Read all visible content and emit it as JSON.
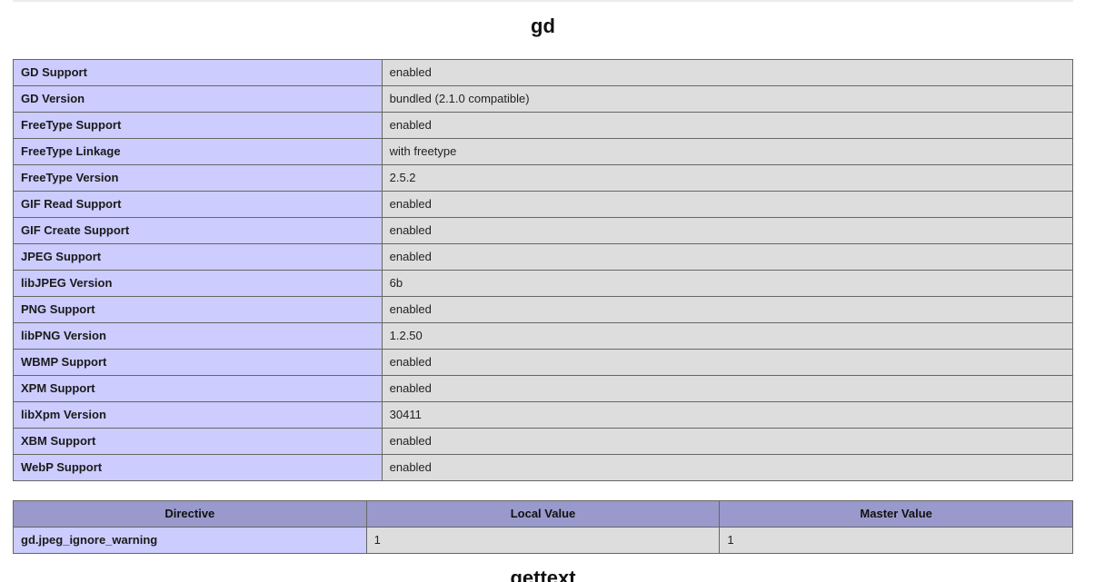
{
  "page_title": "gd",
  "next_section_title": "gettext",
  "colors": {
    "label_cell_bg": "#ccccff",
    "value_cell_bg": "#dddddd",
    "header_cell_bg": "#9999cc",
    "table_border": "#666666",
    "page_bg": "#ffffff"
  },
  "gd_table": {
    "rows": [
      {
        "label": "GD Support",
        "value": "enabled"
      },
      {
        "label": "GD Version",
        "value": "bundled (2.1.0 compatible)"
      },
      {
        "label": "FreeType Support",
        "value": "enabled"
      },
      {
        "label": "FreeType Linkage",
        "value": "with freetype"
      },
      {
        "label": "FreeType Version",
        "value": "2.5.2"
      },
      {
        "label": "GIF Read Support",
        "value": "enabled"
      },
      {
        "label": "GIF Create Support",
        "value": "enabled"
      },
      {
        "label": "JPEG Support",
        "value": "enabled"
      },
      {
        "label": "libJPEG Version",
        "value": "6b"
      },
      {
        "label": "PNG Support",
        "value": "enabled"
      },
      {
        "label": "libPNG Version",
        "value": "1.2.50"
      },
      {
        "label": "WBMP Support",
        "value": "enabled"
      },
      {
        "label": "XPM Support",
        "value": "enabled"
      },
      {
        "label": "libXpm Version",
        "value": "30411"
      },
      {
        "label": "XBM Support",
        "value": "enabled"
      },
      {
        "label": "WebP Support",
        "value": "enabled"
      }
    ]
  },
  "directive_table": {
    "headers": [
      "Directive",
      "Local Value",
      "Master Value"
    ],
    "rows": [
      {
        "directive": "gd.jpeg_ignore_warning",
        "local_value": "1",
        "master_value": "1"
      }
    ]
  }
}
